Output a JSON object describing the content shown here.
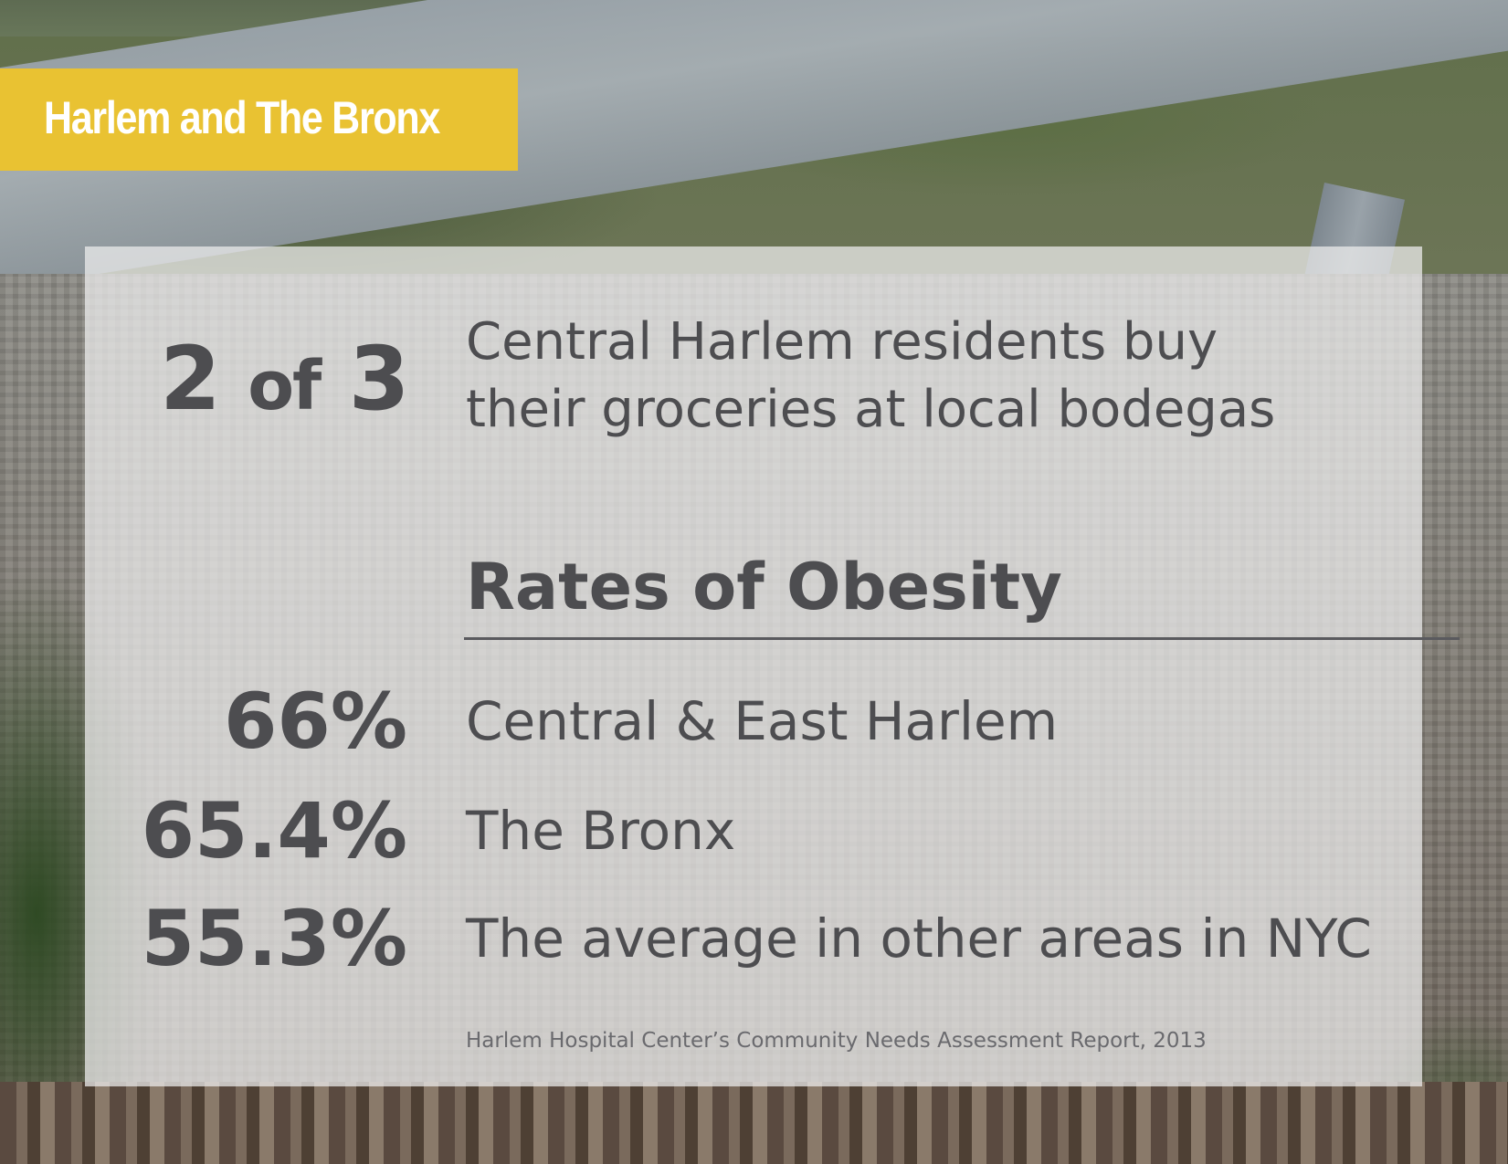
{
  "banner": {
    "title": "Harlem and The Bronx",
    "color": "#e9c232"
  },
  "highlight": {
    "stat_main": "2",
    "stat_of": "of",
    "stat_total": "3",
    "text_line1": "Central Harlem residents buy",
    "text_line2": "their groceries at local bodegas"
  },
  "obesity": {
    "title": "Rates of Obesity",
    "rates": [
      {
        "value": "66%",
        "label": "Central & East Harlem"
      },
      {
        "value": "65.4%",
        "label": "The Bronx"
      },
      {
        "value": "55.3%",
        "label": "The average in other areas in NYC"
      }
    ]
  },
  "source": "Harlem Hospital Center’s Community Needs Assessment Report, 2013",
  "colors": {
    "text": "#4d4d50",
    "panel": "rgba(236,236,236,0.74)",
    "banner_text": "#ffffff"
  }
}
